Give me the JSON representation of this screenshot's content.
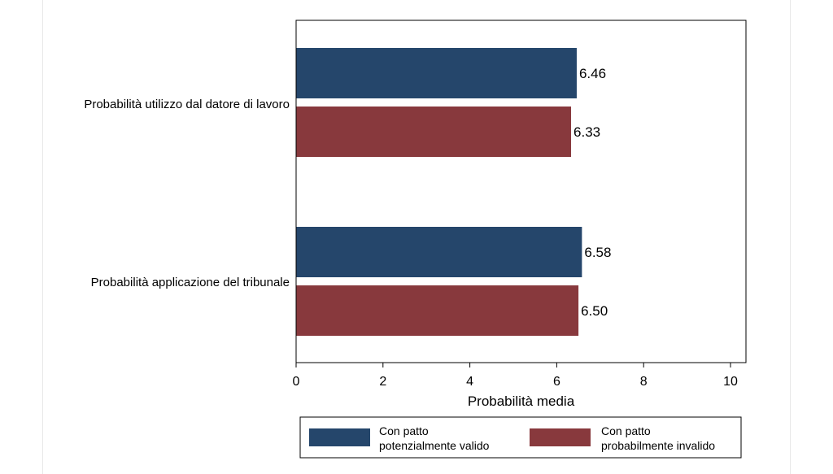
{
  "chart_data": {
    "type": "bar",
    "orientation": "horizontal",
    "categories": [
      "Probabilità utilizzo dal datore di lavoro",
      "Probabilità applicazione del tribunale"
    ],
    "series": [
      {
        "name": "Con patto potenzialmente valido",
        "legend_lines": [
          "Con patto",
          "potenzialmente valido"
        ],
        "color": "#25466b",
        "values": [
          6.46,
          6.58
        ],
        "labels": [
          "6.46",
          "6.58"
        ]
      },
      {
        "name": "Con patto probabilmente invalido",
        "legend_lines": [
          "Con patto",
          "probabilmente invalido"
        ],
        "color": "#88393d",
        "values": [
          6.33,
          6.5
        ],
        "labels": [
          "6.33",
          "6.50"
        ]
      }
    ],
    "xlabel": "Probabilità media",
    "xlim": [
      0,
      10
    ],
    "xticks": [
      "0",
      "2",
      "4",
      "6",
      "8",
      "10"
    ],
    "grid": false,
    "legend_position": "bottom"
  }
}
